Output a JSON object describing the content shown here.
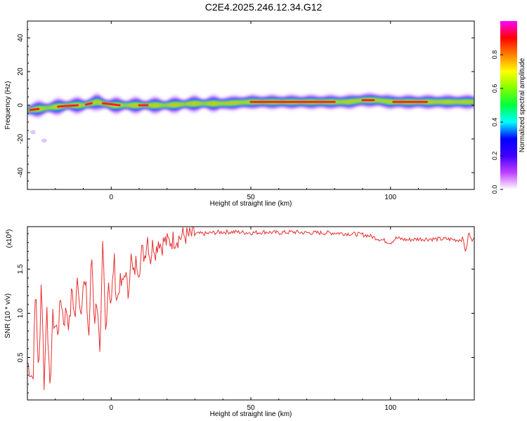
{
  "title": "C2E4.2025.246.12.34.G12",
  "chart_data": [
    {
      "type": "heatmap",
      "name": "spectrogram",
      "xlabel": "Height of straight line (km)",
      "ylabel": "Frequency (Hz)",
      "xlim": [
        -30,
        130
      ],
      "ylim": [
        -50,
        50
      ],
      "xticks": [
        0,
        50,
        100
      ],
      "yticks": [
        40,
        20,
        0,
        -20,
        -40
      ],
      "xtick_labels": [
        "0",
        "50",
        "100"
      ],
      "ytick_labels": [
        "40",
        "20",
        "0",
        "-20",
        "-40"
      ],
      "colorbar": {
        "label": "Normalized spectral amplitude",
        "range": [
          0,
          1
        ],
        "ticks": [
          "0.0",
          "0.2",
          "0.4",
          "0.6",
          "0.8"
        ],
        "tick_values": [
          0.0,
          0.2,
          0.4,
          0.6,
          0.8
        ],
        "colors": [
          "#ffffff",
          "#c040ff",
          "#4000ff",
          "#0000ff",
          "#00ffff",
          "#00ff40",
          "#80ff00",
          "#ffff00",
          "#ff8000",
          "#ff0000",
          "#ff00ff"
        ]
      },
      "ridge": {
        "x": [
          -30,
          -25,
          -20,
          -15,
          -10,
          -5,
          0,
          5,
          10,
          15,
          20,
          30,
          40,
          50,
          60,
          70,
          80,
          85,
          90,
          95,
          100,
          110,
          120,
          130
        ],
        "y": [
          -3,
          -2,
          -1,
          0,
          0,
          2,
          0,
          0,
          0,
          0,
          0,
          1,
          1,
          2,
          2,
          2,
          2,
          2,
          3,
          3,
          2,
          2,
          2,
          2
        ]
      },
      "outliers": [
        {
          "x": -24,
          "y": -21
        },
        {
          "x": -28,
          "y": -16
        }
      ],
      "grid": false
    },
    {
      "type": "line",
      "name": "snr",
      "xlabel": "Height of straight line (km)",
      "ylabel": "SNR (10 * v/v)",
      "y_multiplier": "(x10^4)",
      "y_multiplier_base": "(x10",
      "y_multiplier_exp": "4",
      "y_multiplier_close": ")",
      "xlim": [
        -30,
        130
      ],
      "ylim": [
        0.02,
        1.98
      ],
      "xticks": [
        0,
        50,
        100
      ],
      "yticks": [
        0.5,
        1.0,
        1.5
      ],
      "xtick_labels": [
        "0",
        "50",
        "100"
      ],
      "ytick_labels": [
        "0.5",
        "1.0",
        "1.5"
      ],
      "series": [
        {
          "color": "#e83030",
          "x": [
            -30,
            -28,
            -27,
            -26,
            -25,
            -24,
            -23,
            -22,
            -21,
            -20,
            -19,
            -18,
            -17,
            -16,
            -15,
            -14,
            -13,
            -12,
            -11,
            -10,
            -9,
            -8,
            -7,
            -6,
            -5,
            -4,
            -3,
            -2,
            -1,
            0,
            1,
            2,
            3,
            4,
            5,
            6,
            7,
            8,
            9,
            10,
            11,
            12,
            13,
            14,
            15,
            16,
            17,
            18,
            19,
            20,
            22,
            24,
            26,
            28,
            30,
            32,
            34,
            36,
            40,
            45,
            50,
            55,
            60,
            65,
            70,
            75,
            80,
            85,
            90,
            92,
            94,
            96,
            98,
            100,
            102,
            104,
            106,
            110,
            115,
            120,
            124,
            126,
            127,
            128,
            129,
            130
          ],
          "y": [
            0.45,
            0.25,
            1.35,
            0.2,
            1.45,
            0.15,
            1.15,
            0.05,
            0.95,
            0.85,
            0.8,
            1.2,
            0.9,
            1.05,
            0.85,
            1.3,
            0.9,
            1.45,
            1.0,
            1.35,
            1.25,
            0.7,
            1.7,
            0.9,
            1.2,
            0.4,
            1.8,
            0.8,
            1.4,
            1.05,
            1.65,
            1.1,
            1.35,
            1.3,
            1.5,
            1.2,
            1.65,
            1.4,
            1.6,
            1.5,
            1.7,
            1.65,
            1.88,
            1.6,
            1.8,
            1.7,
            1.85,
            1.75,
            1.82,
            1.8,
            1.83,
            1.85,
            1.88,
            1.87,
            1.9,
            1.9,
            1.9,
            1.91,
            1.92,
            1.92,
            1.91,
            1.92,
            1.91,
            1.92,
            1.91,
            1.91,
            1.91,
            1.9,
            1.89,
            1.88,
            1.86,
            1.84,
            1.82,
            1.8,
            1.85,
            1.84,
            1.83,
            1.84,
            1.84,
            1.84,
            1.83,
            1.84,
            1.68,
            1.92,
            1.82,
            1.88
          ]
        }
      ],
      "grid": false
    }
  ]
}
